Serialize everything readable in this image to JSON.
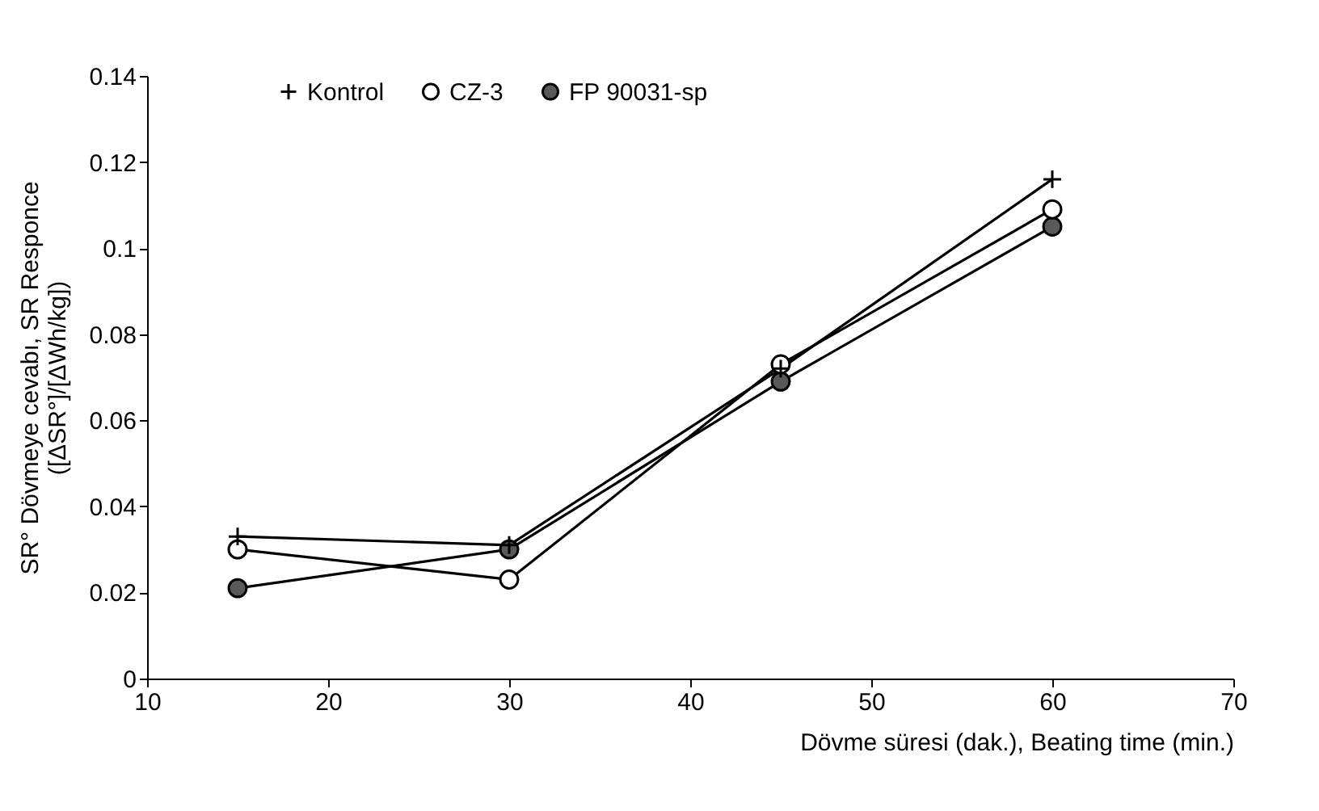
{
  "chart_data": {
    "type": "line",
    "xlabel": "Dövme süresi (dak.), Beating time (min.)",
    "ylabel": "SR° Dövmeye cevabı, SR Responce\n([ΔSR°]/[ΔWh/kg])",
    "x": [
      15,
      30,
      45,
      60
    ],
    "series": [
      {
        "name": "Kontrol",
        "color": "#000000",
        "marker": "cross",
        "values": [
          0.033,
          0.031,
          0.072,
          0.116
        ]
      },
      {
        "name": "CZ-3",
        "color": "#ffffff",
        "marker": "circle",
        "values": [
          0.03,
          0.023,
          0.073,
          0.109
        ]
      },
      {
        "name": "FP 90031-sp",
        "color": "#595959",
        "marker": "circle",
        "values": [
          0.021,
          0.03,
          0.069,
          0.105
        ]
      }
    ],
    "xlim": [
      10,
      70
    ],
    "xticks": [
      10,
      20,
      30,
      40,
      50,
      60,
      70
    ],
    "ylim": [
      0,
      0.14
    ],
    "yticks": [
      0,
      0.02,
      0.04,
      0.06,
      0.08,
      0.1,
      0.12,
      0.14
    ],
    "grid": false,
    "legend": "top",
    "line_style": "solid"
  }
}
